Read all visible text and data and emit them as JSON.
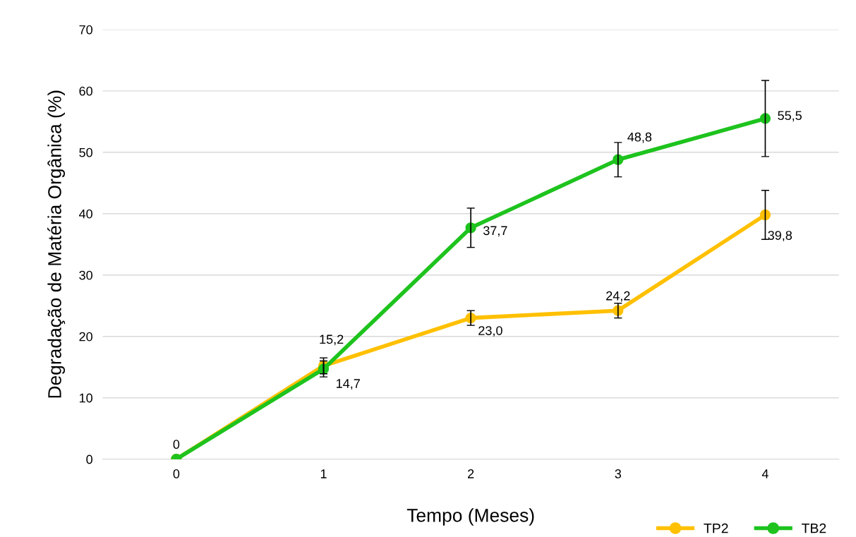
{
  "chart_data": {
    "type": "line",
    "xlabel": "Tempo (Meses)",
    "ylabel": "Degradação de Matéria Orgânica (%)",
    "categories": [
      "0",
      "1",
      "2",
      "3",
      "4"
    ],
    "ylim": [
      0,
      70
    ],
    "yticks": [
      0,
      10,
      20,
      30,
      40,
      50,
      60,
      70
    ],
    "grid": "y",
    "legend": "bottom right",
    "marker": "circle",
    "line_style": "solid",
    "series": [
      {
        "name": "TP2",
        "color": "#ffc000",
        "values": [
          0,
          15.2,
          23.0,
          24.2,
          39.8
        ],
        "errors": [
          null,
          1.3,
          1.2,
          1.2,
          4.0
        ],
        "value_labels": [
          null,
          "15,2",
          "23,0",
          "24,2",
          "39,8"
        ]
      },
      {
        "name": "TB2",
        "color": "#1ec31e",
        "values": [
          0,
          14.7,
          37.7,
          48.8,
          55.5
        ],
        "errors": [
          null,
          1.3,
          3.2,
          2.8,
          6.2
        ],
        "value_labels": [
          "0",
          "14,7",
          "37,7",
          "48,8",
          "55,5"
        ]
      }
    ]
  }
}
